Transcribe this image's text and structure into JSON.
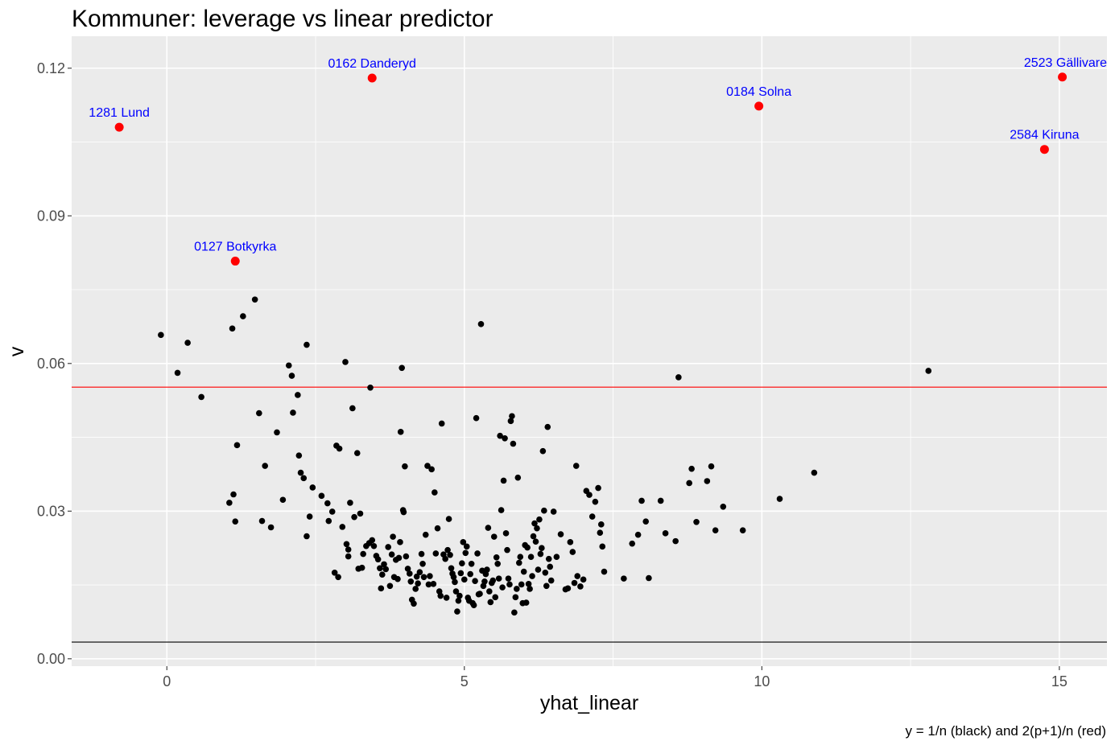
{
  "chart_data": {
    "type": "scatter",
    "title": "Kommuner: leverage vs linear predictor",
    "xlabel": "yhat_linear",
    "ylabel": "v",
    "caption": "y = 1/n (black) and 2(p+1)/n (red)",
    "xlim": [
      -1.6,
      15.8
    ],
    "ylim": [
      -0.0015,
      0.1265
    ],
    "x_ticks": [
      0,
      5,
      10,
      15
    ],
    "x_tick_labels": [
      "0",
      "5",
      "10",
      "15"
    ],
    "y_ticks": [
      0.0,
      0.03,
      0.06,
      0.09,
      0.12
    ],
    "y_tick_labels": [
      "0.00",
      "0.03",
      "0.06",
      "0.09",
      "0.12"
    ],
    "grid": true,
    "reference_lines": [
      {
        "y": 0.0034,
        "color": "#000000"
      },
      {
        "y": 0.0552,
        "color": "#ff0000"
      }
    ],
    "highlighted": [
      {
        "x": -0.8,
        "y": 0.108,
        "label": "1281 Lund"
      },
      {
        "x": 1.15,
        "y": 0.0808,
        "label": "0127 Botkyrka"
      },
      {
        "x": 3.45,
        "y": 0.118,
        "label": "0162 Danderyd"
      },
      {
        "x": 9.95,
        "y": 0.1123,
        "label": "0184 Solna"
      },
      {
        "x": 15.05,
        "y": 0.1182,
        "label": "2523 Gällivare"
      },
      {
        "x": 14.75,
        "y": 0.1035,
        "label": "2584 Kiruna"
      }
    ],
    "highlight_color": "#ff0000",
    "label_color": "#0000ff",
    "point_color": "#000000",
    "points": [
      [
        -0.1,
        0.0658
      ],
      [
        0.18,
        0.0581
      ],
      [
        0.35,
        0.0642
      ],
      [
        0.58,
        0.0532
      ],
      [
        1.1,
        0.0671
      ],
      [
        1.28,
        0.0696
      ],
      [
        1.48,
        0.073
      ],
      [
        1.05,
        0.0317
      ],
      [
        1.12,
        0.0334
      ],
      [
        1.15,
        0.0279
      ],
      [
        1.18,
        0.0434
      ],
      [
        1.55,
        0.0499
      ],
      [
        1.6,
        0.028
      ],
      [
        1.65,
        0.0392
      ],
      [
        1.75,
        0.0267
      ],
      [
        1.85,
        0.046
      ],
      [
        1.95,
        0.0323
      ],
      [
        2.05,
        0.0596
      ],
      [
        2.1,
        0.0575
      ],
      [
        2.12,
        0.05
      ],
      [
        2.2,
        0.0536
      ],
      [
        2.22,
        0.0413
      ],
      [
        2.25,
        0.0378
      ],
      [
        2.3,
        0.0367
      ],
      [
        2.35,
        0.0638
      ],
      [
        2.35,
        0.0249
      ],
      [
        2.4,
        0.0289
      ],
      [
        2.45,
        0.0348
      ],
      [
        2.6,
        0.0331
      ],
      [
        2.7,
        0.0316
      ],
      [
        2.72,
        0.028
      ],
      [
        2.78,
        0.0299
      ],
      [
        2.85,
        0.0433
      ],
      [
        2.9,
        0.0427
      ],
      [
        2.88,
        0.0166
      ],
      [
        2.82,
        0.0175
      ],
      [
        2.95,
        0.0268
      ],
      [
        3.0,
        0.0603
      ],
      [
        3.02,
        0.0233
      ],
      [
        3.05,
        0.0208
      ],
      [
        3.05,
        0.0222
      ],
      [
        3.08,
        0.0317
      ],
      [
        3.12,
        0.0509
      ],
      [
        3.15,
        0.0288
      ],
      [
        3.2,
        0.0418
      ],
      [
        3.25,
        0.0295
      ],
      [
        3.22,
        0.0183
      ],
      [
        3.28,
        0.0185
      ],
      [
        3.3,
        0.0213
      ],
      [
        3.35,
        0.0229
      ],
      [
        3.4,
        0.0235
      ],
      [
        3.42,
        0.0551
      ],
      [
        3.45,
        0.0241
      ],
      [
        3.48,
        0.0229
      ],
      [
        3.52,
        0.0209
      ],
      [
        3.55,
        0.0202
      ],
      [
        3.58,
        0.0184
      ],
      [
        3.6,
        0.0143
      ],
      [
        3.62,
        0.0171
      ],
      [
        3.65,
        0.0192
      ],
      [
        3.68,
        0.0182
      ],
      [
        3.72,
        0.0227
      ],
      [
        3.75,
        0.0148
      ],
      [
        3.78,
        0.0212
      ],
      [
        3.8,
        0.0248
      ],
      [
        3.82,
        0.0166
      ],
      [
        3.85,
        0.0201
      ],
      [
        3.88,
        0.0162
      ],
      [
        3.9,
        0.0205
      ],
      [
        3.92,
        0.0237
      ],
      [
        3.93,
        0.0461
      ],
      [
        3.95,
        0.0591
      ],
      [
        3.97,
        0.0302
      ],
      [
        3.98,
        0.0298
      ],
      [
        4.0,
        0.0391
      ],
      [
        4.02,
        0.0208
      ],
      [
        4.05,
        0.0183
      ],
      [
        4.08,
        0.0173
      ],
      [
        4.1,
        0.0157
      ],
      [
        4.12,
        0.012
      ],
      [
        4.15,
        0.0112
      ],
      [
        4.18,
        0.0142
      ],
      [
        4.2,
        0.0167
      ],
      [
        4.22,
        0.0153
      ],
      [
        4.25,
        0.0176
      ],
      [
        4.28,
        0.0213
      ],
      [
        4.3,
        0.0193
      ],
      [
        4.32,
        0.0166
      ],
      [
        4.35,
        0.0252
      ],
      [
        4.38,
        0.0392
      ],
      [
        4.4,
        0.0151
      ],
      [
        4.42,
        0.0168
      ],
      [
        4.45,
        0.0385
      ],
      [
        4.48,
        0.0152
      ],
      [
        4.5,
        0.0338
      ],
      [
        4.52,
        0.0214
      ],
      [
        4.55,
        0.0265
      ],
      [
        4.58,
        0.0137
      ],
      [
        4.6,
        0.0128
      ],
      [
        4.62,
        0.0478
      ],
      [
        4.65,
        0.0212
      ],
      [
        4.68,
        0.0203
      ],
      [
        4.7,
        0.0124
      ],
      [
        4.72,
        0.0221
      ],
      [
        4.74,
        0.0284
      ],
      [
        4.76,
        0.0211
      ],
      [
        4.78,
        0.0184
      ],
      [
        4.8,
        0.0173
      ],
      [
        4.82,
        0.0166
      ],
      [
        4.84,
        0.0156
      ],
      [
        4.86,
        0.0137
      ],
      [
        4.88,
        0.0096
      ],
      [
        4.9,
        0.0118
      ],
      [
        4.92,
        0.0128
      ],
      [
        4.94,
        0.0174
      ],
      [
        4.96,
        0.0194
      ],
      [
        4.98,
        0.0237
      ],
      [
        5.0,
        0.0161
      ],
      [
        5.02,
        0.0215
      ],
      [
        5.04,
        0.0228
      ],
      [
        5.06,
        0.0124
      ],
      [
        5.08,
        0.0118
      ],
      [
        5.1,
        0.0172
      ],
      [
        5.12,
        0.0193
      ],
      [
        5.14,
        0.0113
      ],
      [
        5.16,
        0.0109
      ],
      [
        5.18,
        0.0158
      ],
      [
        5.2,
        0.0489
      ],
      [
        5.22,
        0.0214
      ],
      [
        5.24,
        0.0131
      ],
      [
        5.26,
        0.0132
      ],
      [
        5.28,
        0.068
      ],
      [
        5.3,
        0.0179
      ],
      [
        5.32,
        0.0148
      ],
      [
        5.34,
        0.0157
      ],
      [
        5.36,
        0.0172
      ],
      [
        5.38,
        0.0181
      ],
      [
        5.4,
        0.0266
      ],
      [
        5.42,
        0.0137
      ],
      [
        5.44,
        0.0115
      ],
      [
        5.46,
        0.0154
      ],
      [
        5.48,
        0.0159
      ],
      [
        5.5,
        0.0248
      ],
      [
        5.52,
        0.0125
      ],
      [
        5.54,
        0.0206
      ],
      [
        5.56,
        0.0193
      ],
      [
        5.58,
        0.0163
      ],
      [
        5.6,
        0.0453
      ],
      [
        5.62,
        0.0302
      ],
      [
        5.64,
        0.0145
      ],
      [
        5.66,
        0.0362
      ],
      [
        5.68,
        0.0448
      ],
      [
        5.7,
        0.0255
      ],
      [
        5.72,
        0.0221
      ],
      [
        5.74,
        0.0163
      ],
      [
        5.76,
        0.0151
      ],
      [
        5.78,
        0.0483
      ],
      [
        5.8,
        0.0493
      ],
      [
        5.82,
        0.0437
      ],
      [
        5.84,
        0.0094
      ],
      [
        5.86,
        0.0125
      ],
      [
        5.88,
        0.0142
      ],
      [
        5.9,
        0.0368
      ],
      [
        5.92,
        0.0195
      ],
      [
        5.94,
        0.0207
      ],
      [
        5.96,
        0.0151
      ],
      [
        5.98,
        0.0113
      ],
      [
        6.0,
        0.0177
      ],
      [
        6.02,
        0.0231
      ],
      [
        6.04,
        0.0114
      ],
      [
        6.06,
        0.0226
      ],
      [
        6.08,
        0.0152
      ],
      [
        6.1,
        0.0142
      ],
      [
        6.12,
        0.0207
      ],
      [
        6.14,
        0.0168
      ],
      [
        6.16,
        0.0249
      ],
      [
        6.18,
        0.0275
      ],
      [
        6.2,
        0.0238
      ],
      [
        6.22,
        0.0265
      ],
      [
        6.24,
        0.0181
      ],
      [
        6.26,
        0.0283
      ],
      [
        6.28,
        0.0213
      ],
      [
        6.3,
        0.0225
      ],
      [
        6.32,
        0.0422
      ],
      [
        6.34,
        0.0301
      ],
      [
        6.36,
        0.0175
      ],
      [
        6.38,
        0.0148
      ],
      [
        6.4,
        0.0471
      ],
      [
        6.42,
        0.0203
      ],
      [
        6.44,
        0.0187
      ],
      [
        6.46,
        0.0159
      ],
      [
        6.5,
        0.0299
      ],
      [
        6.55,
        0.0207
      ],
      [
        6.62,
        0.0253
      ],
      [
        6.7,
        0.0141
      ],
      [
        6.74,
        0.0143
      ],
      [
        6.78,
        0.0237
      ],
      [
        6.82,
        0.0217
      ],
      [
        6.85,
        0.0154
      ],
      [
        6.88,
        0.0392
      ],
      [
        6.9,
        0.0168
      ],
      [
        6.95,
        0.0147
      ],
      [
        7.0,
        0.0161
      ],
      [
        7.05,
        0.0341
      ],
      [
        7.1,
        0.0333
      ],
      [
        7.15,
        0.0289
      ],
      [
        7.2,
        0.0319
      ],
      [
        7.25,
        0.0347
      ],
      [
        7.28,
        0.0256
      ],
      [
        7.3,
        0.0273
      ],
      [
        7.32,
        0.0228
      ],
      [
        7.35,
        0.0177
      ],
      [
        7.68,
        0.0163
      ],
      [
        7.82,
        0.0234
      ],
      [
        7.92,
        0.0252
      ],
      [
        7.98,
        0.0321
      ],
      [
        8.05,
        0.0279
      ],
      [
        8.1,
        0.0164
      ],
      [
        8.3,
        0.0321
      ],
      [
        8.38,
        0.0255
      ],
      [
        8.55,
        0.0239
      ],
      [
        8.6,
        0.0572
      ],
      [
        8.78,
        0.0357
      ],
      [
        8.82,
        0.0386
      ],
      [
        8.9,
        0.0278
      ],
      [
        9.08,
        0.0361
      ],
      [
        9.15,
        0.0391
      ],
      [
        9.22,
        0.0261
      ],
      [
        9.35,
        0.0309
      ],
      [
        9.68,
        0.0261
      ],
      [
        10.3,
        0.0325
      ],
      [
        10.88,
        0.0378
      ],
      [
        12.8,
        0.0585
      ]
    ]
  }
}
